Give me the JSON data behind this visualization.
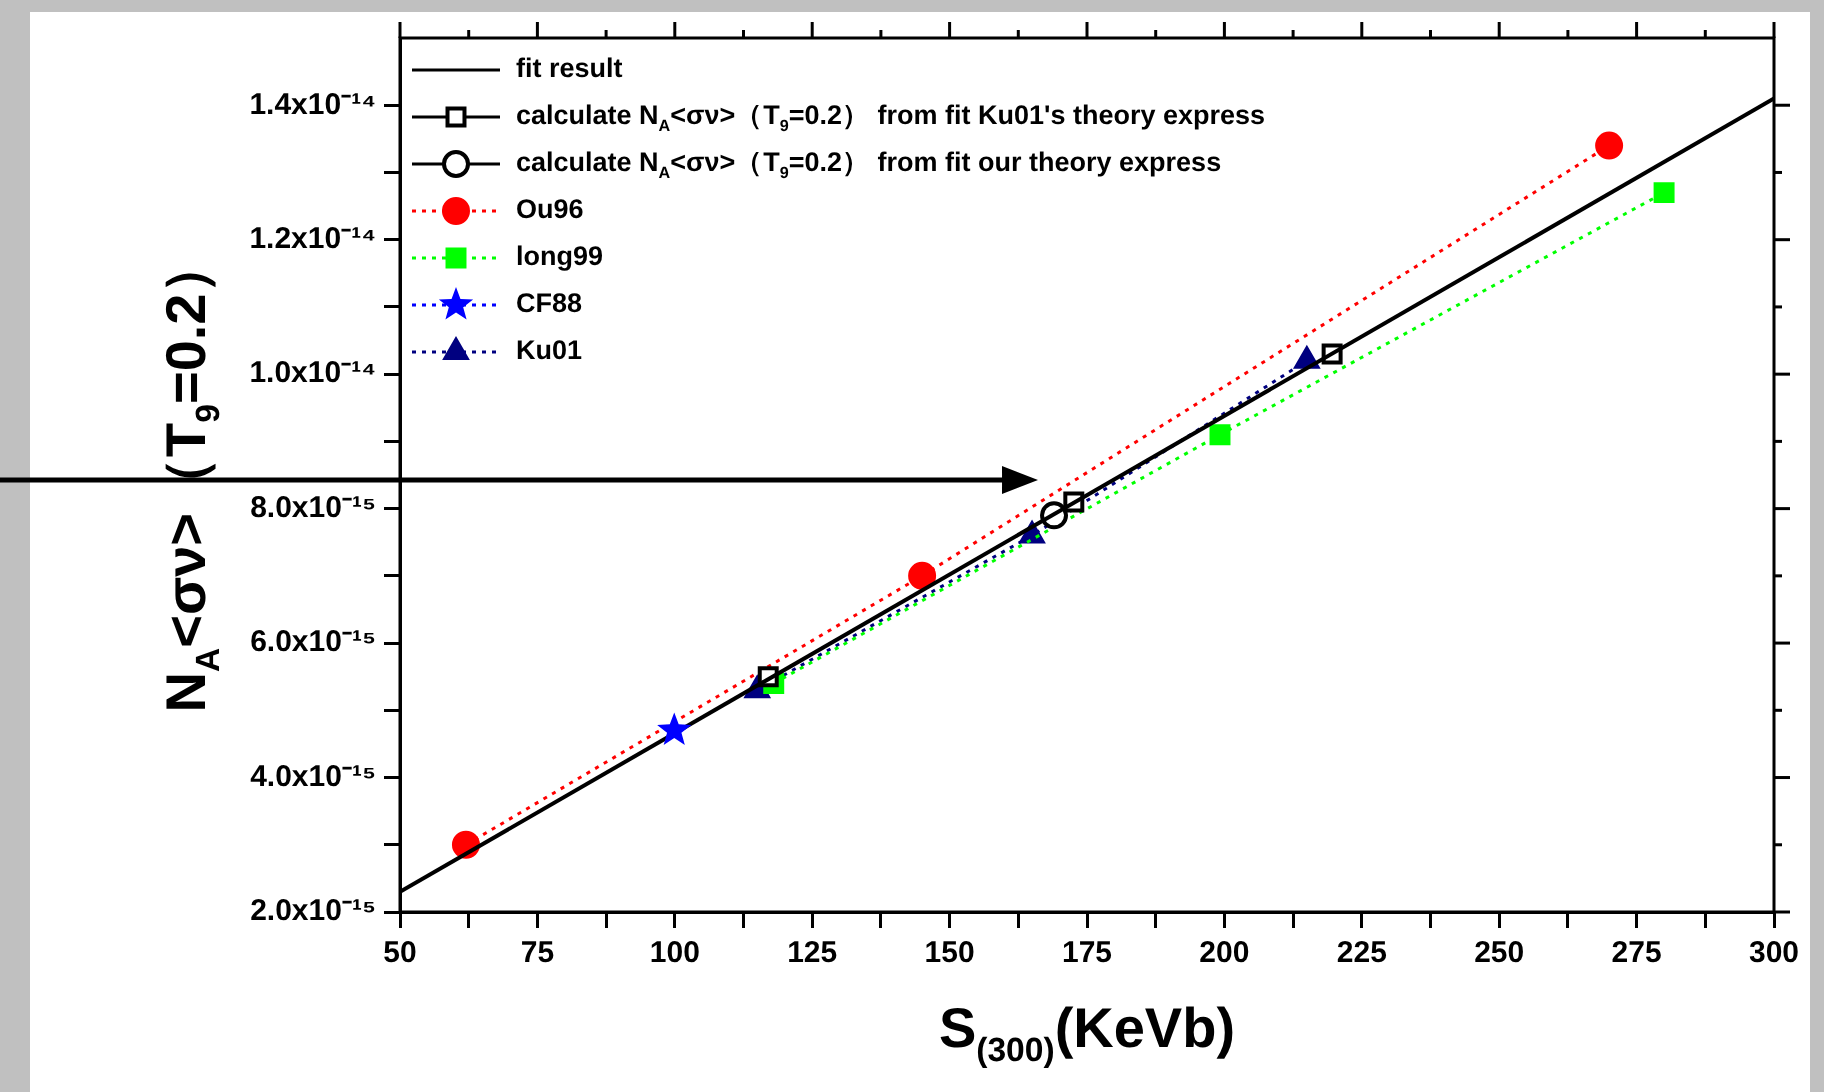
{
  "chart_data": {
    "type": "line",
    "xlabel": "S$_{(300)}$(KeVb)",
    "ylabel": "N$_{A}$<σν>（T$_{9}$=0.2）",
    "xlim": [
      50,
      300
    ],
    "xticks": [
      50,
      {
        "value": 62.5,
        "label": null
      },
      75,
      {
        "value": 87.5,
        "label": null
      },
      100,
      {
        "value": 112.5,
        "label": null
      },
      125,
      {
        "value": 137.5,
        "label": null
      },
      150,
      {
        "value": 162.5,
        "label": null
      },
      175,
      {
        "value": 187.5,
        "label": null
      },
      200,
      {
        "value": 212.5,
        "label": null
      },
      225,
      {
        "value": 237.5,
        "label": null
      },
      250,
      {
        "value": 262.5,
        "label": null
      },
      275,
      {
        "value": 287.5,
        "label": null
      },
      300
    ],
    "ylim": [
      2e-15,
      1.5e-14
    ],
    "yticks": [
      {
        "value": 2e-15,
        "label": "2.0x10⁻¹⁵"
      },
      {
        "value": 3e-15,
        "label": null
      },
      {
        "value": 4e-15,
        "label": "4.0x10⁻¹⁵"
      },
      {
        "value": 5e-15,
        "label": null
      },
      {
        "value": 6e-15,
        "label": "6.0x10⁻¹⁵"
      },
      {
        "value": 7e-15,
        "label": null
      },
      {
        "value": 8e-15,
        "label": "8.0x10⁻¹⁵"
      },
      {
        "value": 9e-15,
        "label": null
      },
      {
        "value": 1e-14,
        "label": "1.0x10⁻¹⁴"
      },
      {
        "value": 1.1e-14,
        "label": null
      },
      {
        "value": 1.2e-14,
        "label": "1.2x10⁻¹⁴"
      },
      {
        "value": 1.3e-14,
        "label": null
      },
      {
        "value": 1.4e-14,
        "label": "1.4x10⁻¹⁴"
      }
    ],
    "grid": false,
    "legend": "top left",
    "series": [
      {
        "name": "fit result",
        "type": "line",
        "color": "#000000",
        "marker": "none",
        "line_style": "solid",
        "x": [
          50,
          300
        ],
        "values": [
          2.3e-15,
          1.41e-14
        ]
      },
      {
        "name": "calculate N$_{A}$<σν>（T$_{9}$=0.2） from fit Ku01's theory express",
        "type": "scatter",
        "color": "#000000",
        "marker": "square",
        "x": [
          117,
          172.6,
          219.6
        ],
        "values": [
          5.5e-15,
          8.1e-15,
          1.03e-14
        ]
      },
      {
        "name": "calculate N$_{A}$<σν>（T$_{9}$=0.2） from fit our theory express",
        "type": "scatter",
        "color": "#000000",
        "marker": "circle",
        "x": [
          169
        ],
        "values": [
          7.9e-15
        ]
      },
      {
        "name": "Ou96",
        "type": "line",
        "color": "#ff0000",
        "marker": "circle",
        "line_style": "dotted",
        "x": [
          62,
          145,
          270
        ],
        "values": [
          3e-15,
          7e-15,
          1.34e-14
        ]
      },
      {
        "name": "long99",
        "type": "line",
        "color": "#00ff00",
        "marker": "square",
        "line_style": "dotted",
        "x": [
          118,
          199.2,
          280
        ],
        "values": [
          5.4e-15,
          9.1e-15,
          1.27e-14
        ]
      },
      {
        "name": "CF88",
        "type": "line",
        "color": "#0000ff",
        "marker": "star",
        "line_style": "dotted",
        "x": [
          99.9
        ],
        "values": [
          4.7e-15
        ]
      },
      {
        "name": "Ku01",
        "type": "line",
        "color": "#000080",
        "marker": "triangle",
        "line_style": "dotted",
        "x": [
          115,
          165,
          215
        ],
        "values": [
          5.3e-15,
          7.6e-15,
          1.02e-14
        ]
      }
    ]
  }
}
